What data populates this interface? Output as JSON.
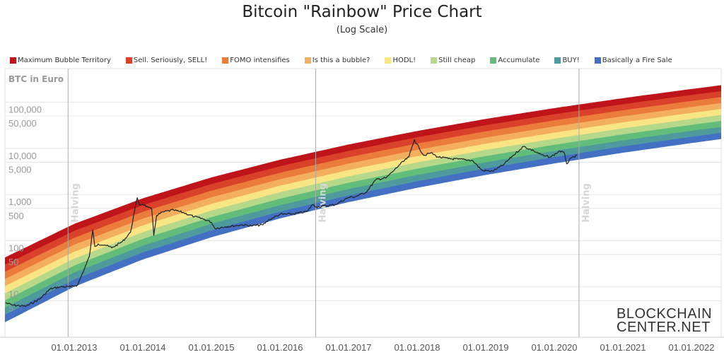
{
  "chart_data": {
    "type": "area",
    "title": "Bitcoin \"Rainbow\" Price Chart",
    "subtitle": "(Log Scale)",
    "ylabel": "BTC in Euro",
    "yscale": "log",
    "ylim": [
      1,
      300000
    ],
    "xlim": [
      "2012-01-01",
      "2022-07-01"
    ],
    "y_ticks": [
      {
        "value": 5,
        "label": "5"
      },
      {
        "value": 10,
        "label": "10"
      },
      {
        "value": 50,
        "label": "50"
      },
      {
        "value": 100,
        "label": "100"
      },
      {
        "value": 500,
        "label": "500"
      },
      {
        "value": 1000,
        "label": "1,000"
      },
      {
        "value": 5000,
        "label": "5,000"
      },
      {
        "value": 10000,
        "label": "10,000"
      },
      {
        "value": 50000,
        "label": "50,000"
      },
      {
        "value": 100000,
        "label": "100,000"
      }
    ],
    "x_ticks": [
      {
        "value": 2013,
        "label": "01.01.2013"
      },
      {
        "value": 2014,
        "label": "01.01.2014"
      },
      {
        "value": 2015,
        "label": "01.01.2015"
      },
      {
        "value": 2016,
        "label": "01.01.2016"
      },
      {
        "value": 2017,
        "label": "01.01.2017"
      },
      {
        "value": 2018,
        "label": "01.01.2018"
      },
      {
        "value": 2019,
        "label": "01.01.2019"
      },
      {
        "value": 2020,
        "label": "01.01.2020"
      },
      {
        "value": 2021,
        "label": "01.01.2021"
      },
      {
        "value": 2022,
        "label": "01.01.2022"
      }
    ],
    "halvings": [
      {
        "date": 2012.91,
        "label": "Halving"
      },
      {
        "date": 2016.52,
        "label": "Halving"
      },
      {
        "date": 2020.36,
        "label": "Halving"
      }
    ],
    "legend_placement": "top",
    "bands": [
      {
        "name": "Maximum Bubble Territory",
        "color": "#c0141b"
      },
      {
        "name": "Sell. Seriously, SELL!",
        "color": "#d9412a"
      },
      {
        "name": "FOMO intensifies",
        "color": "#ec7c3b"
      },
      {
        "name": "Is this a bubble?",
        "color": "#f3ae5e"
      },
      {
        "name": "HODL!",
        "color": "#fae585"
      },
      {
        "name": "Still cheap",
        "color": "#b5d88b"
      },
      {
        "name": "Accumulate",
        "color": "#63bd7a"
      },
      {
        "name": "BUY!",
        "color": "#4e9a9c"
      },
      {
        "name": "Basically a Fire Sale",
        "color": "#4470c4"
      }
    ],
    "band_envelope": {
      "dates": [
        2012,
        2013,
        2014,
        2015,
        2016,
        2017,
        2018,
        2019,
        2020,
        2021,
        2022,
        2022.5
      ],
      "upper": [
        44,
        231,
        826,
        2340,
        5650,
        12100,
        23700,
        43300,
        74300,
        122000,
        193000,
        240000
      ],
      "lower": [
        1.76,
        10.2,
        39.6,
        120,
        307,
        692,
        1413,
        2685,
        4764,
        8128,
        13180,
        16600
      ]
    },
    "price_series": {
      "color": "#222222",
      "x": [
        2012.0,
        2012.1,
        2012.3,
        2012.5,
        2012.65,
        2012.8,
        2012.95,
        2013.05,
        2013.15,
        2013.22,
        2013.27,
        2013.3,
        2013.35,
        2013.45,
        2013.55,
        2013.7,
        2013.82,
        2013.88,
        2013.92,
        2013.95,
        2014.0,
        2014.08,
        2014.13,
        2014.16,
        2014.2,
        2014.3,
        2014.45,
        2014.6,
        2014.75,
        2014.9,
        2015.0,
        2015.05,
        2015.2,
        2015.45,
        2015.6,
        2015.75,
        2015.85,
        2016.0,
        2016.2,
        2016.4,
        2016.47,
        2016.55,
        2016.8,
        2017.0,
        2017.1,
        2017.25,
        2017.4,
        2017.55,
        2017.65,
        2017.75,
        2017.88,
        2017.96,
        2018.03,
        2018.1,
        2018.2,
        2018.3,
        2018.45,
        2018.6,
        2018.8,
        2018.88,
        2018.95,
        2019.1,
        2019.25,
        2019.4,
        2019.5,
        2019.55,
        2019.7,
        2019.85,
        2019.95,
        2020.08,
        2020.15,
        2020.18,
        2020.25,
        2020.33
      ],
      "y": [
        4.5,
        4.0,
        3.8,
        5.5,
        9,
        10,
        10,
        11,
        25,
        45,
        170,
        75,
        85,
        80,
        70,
        95,
        150,
        450,
        850,
        600,
        620,
        520,
        480,
        130,
        350,
        420,
        460,
        400,
        330,
        290,
        250,
        185,
        200,
        220,
        210,
        220,
        290,
        370,
        380,
        430,
        600,
        540,
        600,
        860,
        900,
        1100,
        2100,
        2300,
        3200,
        4500,
        6500,
        15500,
        10000,
        7000,
        8000,
        6500,
        6000,
        5800,
        5500,
        4200,
        3300,
        3200,
        4300,
        7000,
        9500,
        11000,
        8800,
        6800,
        6500,
        8800,
        7700,
        4600,
        6200,
        7000
      ]
    }
  },
  "logo": {
    "line1": "BLOCKCHAIN",
    "line2": "CENTER.NET"
  }
}
